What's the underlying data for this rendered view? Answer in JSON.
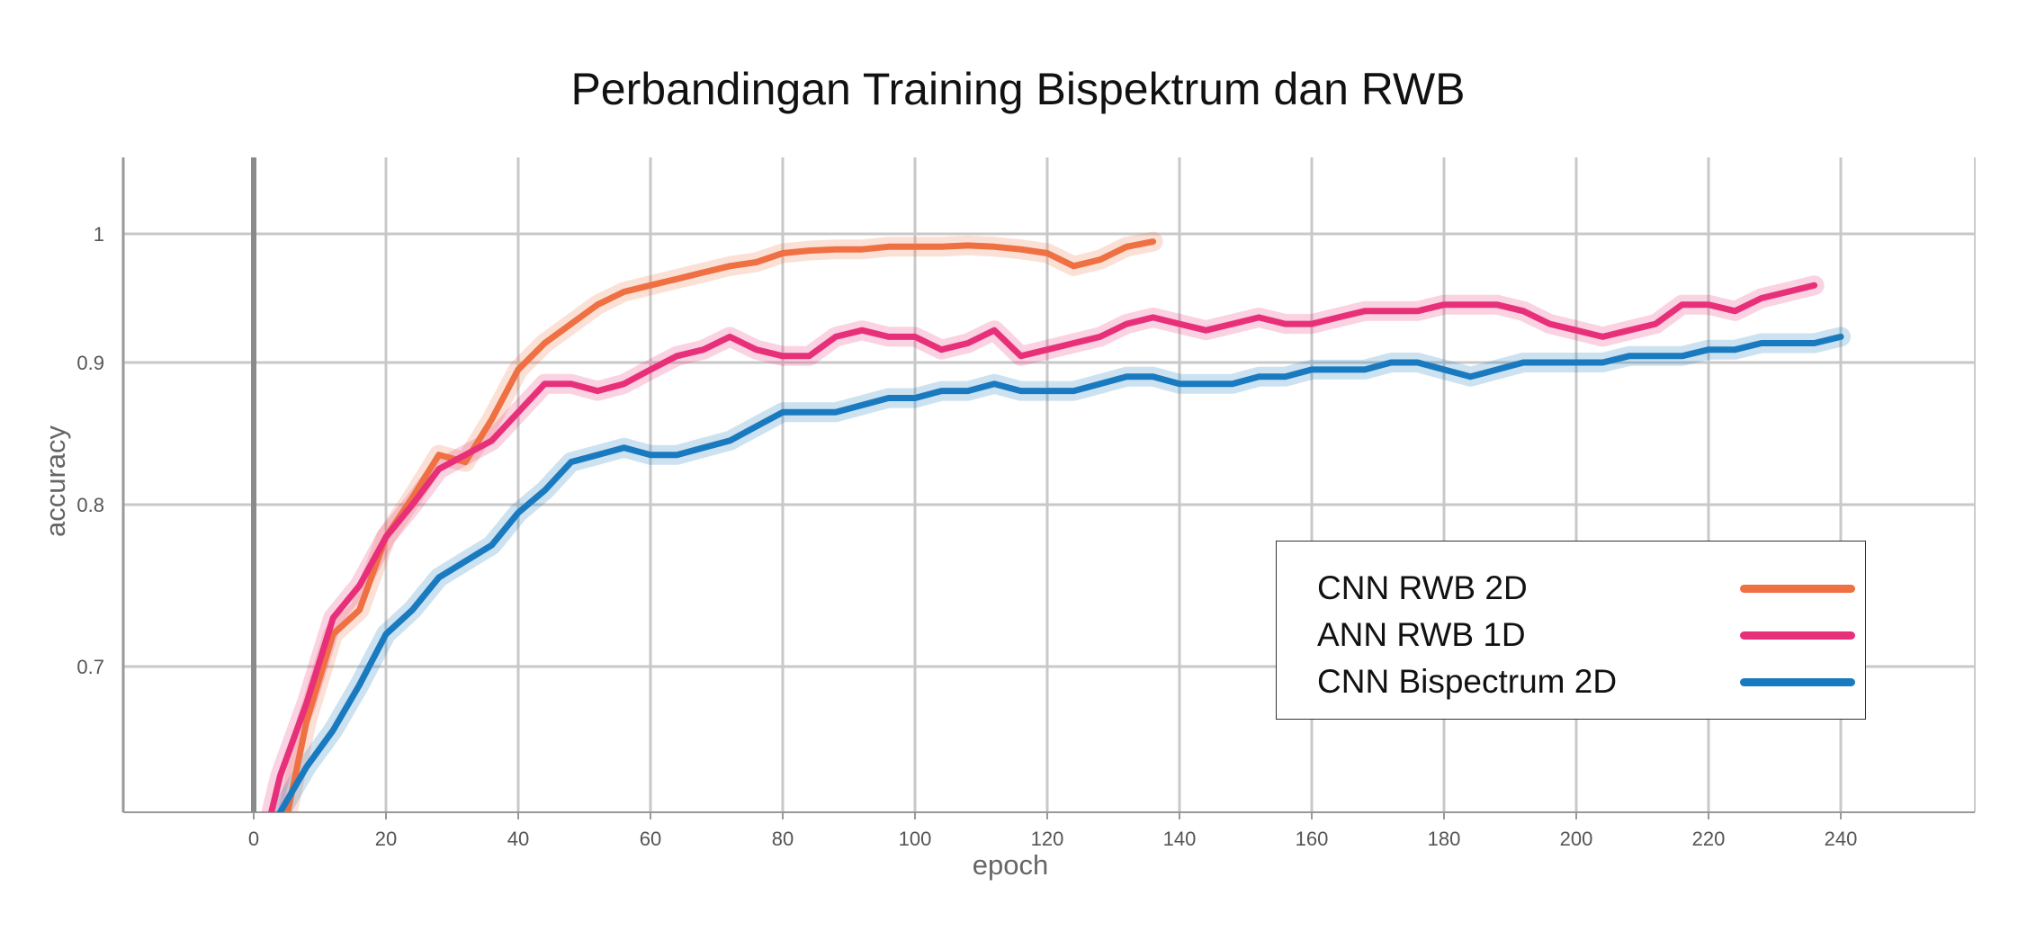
{
  "chart_data": {
    "type": "line",
    "title": "Perbandingan Training Bispektrum dan RWB",
    "xlabel": "epoch",
    "ylabel": "accuracy",
    "xlim": [
      -20,
      260
    ],
    "xticks": [
      0,
      20,
      40,
      60,
      80,
      100,
      120,
      140,
      160,
      180,
      200,
      220,
      240
    ],
    "ylim": [
      0.62,
      1.05
    ],
    "yticks": [
      0.7,
      0.8,
      0.9,
      1
    ],
    "ytick_labels": [
      "0.7",
      "0.8",
      "0.9",
      "1"
    ],
    "grid": true,
    "legend_position": "bottom-right",
    "series": [
      {
        "name": "CNN RWB 2D",
        "color": "#ef7043",
        "x": [
          0,
          4,
          8,
          12,
          16,
          20,
          24,
          28,
          32,
          36,
          40,
          44,
          48,
          52,
          56,
          60,
          64,
          68,
          72,
          76,
          80,
          84,
          88,
          92,
          96,
          100,
          104,
          108,
          112,
          116,
          120,
          124,
          128,
          132,
          136
        ],
        "y": [
          0.55,
          0.6,
          0.67,
          0.72,
          0.735,
          0.78,
          0.805,
          0.835,
          0.83,
          0.86,
          0.895,
          0.915,
          0.93,
          0.945,
          0.955,
          0.96,
          0.965,
          0.97,
          0.975,
          0.978,
          0.985,
          0.987,
          0.988,
          0.988,
          0.99,
          0.99,
          0.99,
          0.991,
          0.99,
          0.988,
          0.985,
          0.975,
          0.98,
          0.99,
          0.994
        ]
      },
      {
        "name": "ANN RWB 1D",
        "color": "#e8307a",
        "x": [
          0,
          4,
          8,
          12,
          16,
          20,
          24,
          28,
          32,
          36,
          40,
          44,
          48,
          52,
          56,
          60,
          64,
          68,
          72,
          76,
          80,
          84,
          88,
          92,
          96,
          100,
          104,
          108,
          112,
          116,
          120,
          124,
          128,
          132,
          136,
          140,
          144,
          148,
          152,
          156,
          160,
          164,
          168,
          172,
          176,
          180,
          184,
          188,
          192,
          196,
          200,
          204,
          208,
          212,
          216,
          220,
          224,
          228,
          232,
          236
        ],
        "y": [
          0.58,
          0.64,
          0.68,
          0.73,
          0.75,
          0.78,
          0.8,
          0.825,
          0.835,
          0.845,
          0.865,
          0.885,
          0.885,
          0.88,
          0.885,
          0.895,
          0.905,
          0.91,
          0.92,
          0.91,
          0.905,
          0.905,
          0.92,
          0.925,
          0.92,
          0.92,
          0.91,
          0.915,
          0.925,
          0.905,
          0.91,
          0.915,
          0.92,
          0.93,
          0.935,
          0.93,
          0.925,
          0.93,
          0.935,
          0.93,
          0.93,
          0.935,
          0.94,
          0.94,
          0.94,
          0.945,
          0.945,
          0.945,
          0.94,
          0.93,
          0.925,
          0.92,
          0.925,
          0.93,
          0.945,
          0.945,
          0.94,
          0.95,
          0.955,
          0.96
        ]
      },
      {
        "name": "CNN Bispectrum 2D",
        "color": "#1a7abf",
        "x": [
          0,
          4,
          8,
          12,
          16,
          20,
          24,
          28,
          32,
          36,
          40,
          44,
          48,
          52,
          56,
          60,
          64,
          68,
          72,
          76,
          80,
          84,
          88,
          92,
          96,
          100,
          104,
          108,
          112,
          116,
          120,
          124,
          128,
          132,
          136,
          140,
          144,
          148,
          152,
          156,
          160,
          164,
          168,
          172,
          176,
          180,
          184,
          188,
          192,
          196,
          200,
          204,
          208,
          212,
          216,
          220,
          224,
          228,
          232,
          236,
          240
        ],
        "y": [
          0.6,
          0.62,
          0.645,
          0.665,
          0.69,
          0.72,
          0.735,
          0.755,
          0.765,
          0.775,
          0.795,
          0.81,
          0.83,
          0.835,
          0.84,
          0.835,
          0.835,
          0.84,
          0.845,
          0.855,
          0.865,
          0.865,
          0.865,
          0.87,
          0.875,
          0.875,
          0.88,
          0.88,
          0.885,
          0.88,
          0.88,
          0.88,
          0.885,
          0.89,
          0.89,
          0.885,
          0.885,
          0.885,
          0.89,
          0.89,
          0.895,
          0.895,
          0.895,
          0.9,
          0.9,
          0.895,
          0.89,
          0.895,
          0.9,
          0.9,
          0.9,
          0.9,
          0.905,
          0.905,
          0.905,
          0.91,
          0.91,
          0.915,
          0.915,
          0.915,
          0.92
        ]
      }
    ]
  }
}
